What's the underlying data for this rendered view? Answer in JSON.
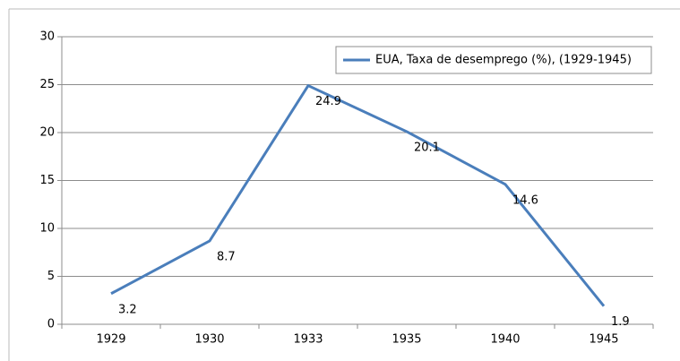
{
  "chart_data": {
    "type": "line",
    "categories": [
      "1929",
      "1930",
      "1933",
      "1935",
      "1940",
      "1945"
    ],
    "series": [
      {
        "name": "EUA, Taxa de desemprego (%), (1929-1945)",
        "color": "#4a7ebb",
        "values": [
          3.2,
          8.7,
          24.9,
          20.1,
          14.6,
          1.9
        ]
      }
    ],
    "ylim": [
      0,
      30
    ],
    "yticks": [
      0,
      5,
      10,
      15,
      20,
      25,
      30
    ],
    "grid": true,
    "legend": "upper right"
  }
}
